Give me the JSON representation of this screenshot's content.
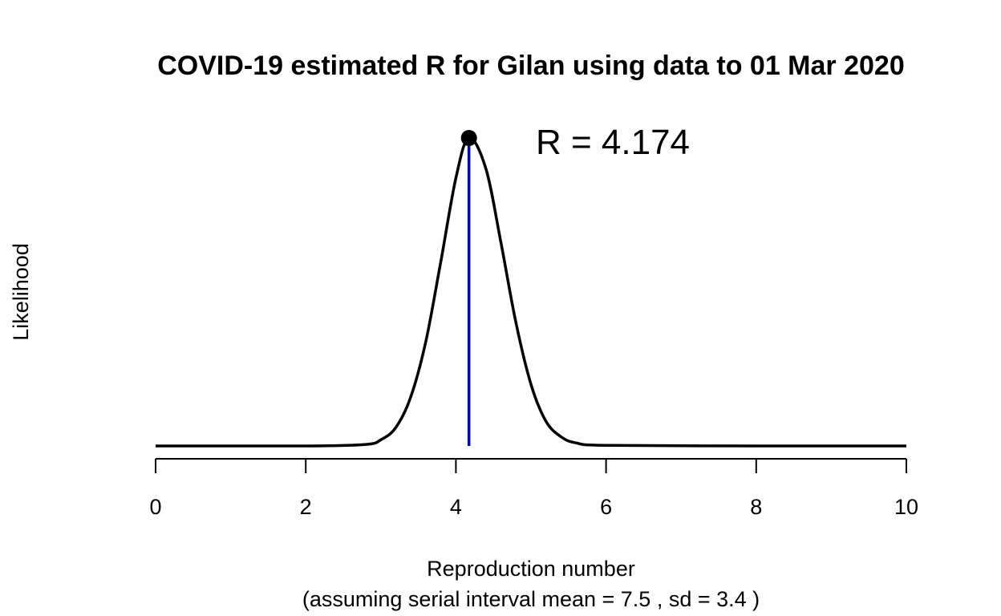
{
  "chart_data": {
    "type": "line",
    "title": "COVID-19 estimated R for Gilan using data to 01 Mar 2020",
    "xlabel": "Reproduction number",
    "xlabel_note": "(assuming serial interval mean = 7.5 , sd = 3.4 )",
    "ylabel": "Likelihood",
    "xlim": [
      0,
      10
    ],
    "ylim": [
      0,
      1
    ],
    "x_ticks": [
      "0",
      "2",
      "4",
      "6",
      "8",
      "10"
    ],
    "y_axis_shown": false,
    "grid": false,
    "legend": "none",
    "series": [
      {
        "x": [
          0,
          2,
          2.8,
          3.0,
          3.2,
          3.4,
          3.6,
          3.8,
          4.0,
          4.174,
          4.4,
          4.6,
          4.8,
          5.0,
          5.2,
          5.4,
          5.6,
          6,
          8,
          10
        ],
        "values": [
          0,
          0,
          0.005,
          0.02,
          0.06,
          0.16,
          0.34,
          0.6,
          0.87,
          1.0,
          0.9,
          0.66,
          0.4,
          0.2,
          0.08,
          0.03,
          0.01,
          0.002,
          0,
          0
        ]
      }
    ],
    "peak": {
      "x": 4.174,
      "label": "R = 4.174"
    },
    "colors": {
      "curve": "#000000",
      "peak_line": "#0000cc",
      "peak_point": "#000000"
    }
  }
}
